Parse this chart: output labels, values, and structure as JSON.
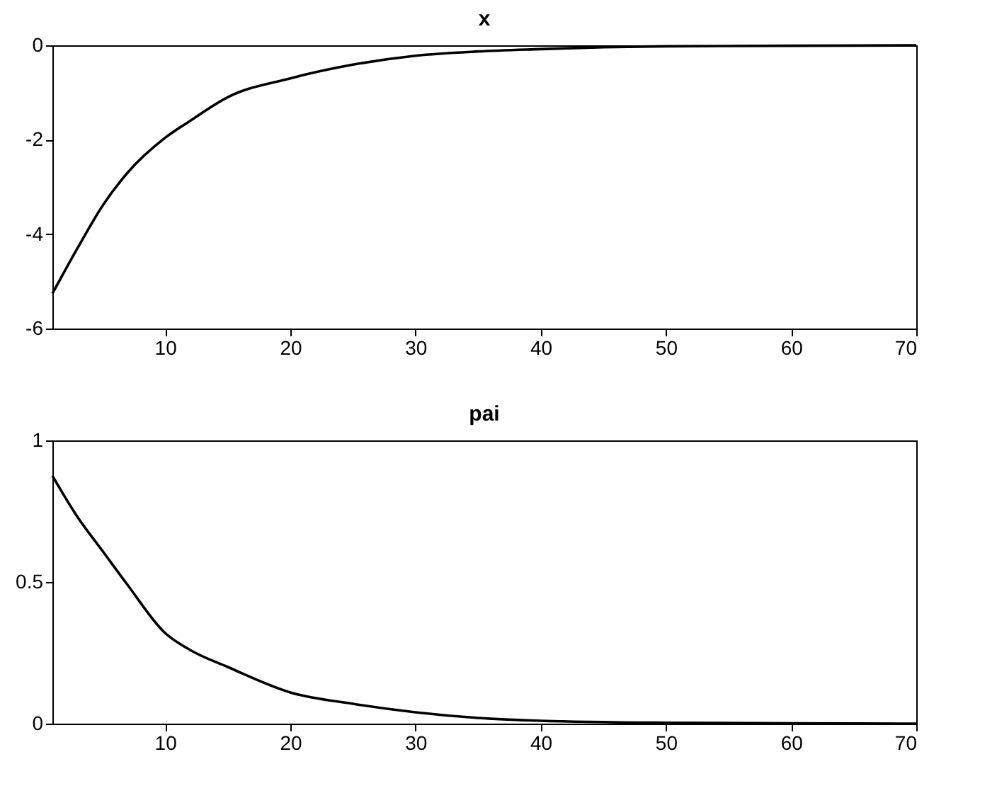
{
  "chart_data": [
    {
      "type": "line",
      "title": "x",
      "x": [
        1,
        3,
        5,
        7,
        10,
        12,
        15,
        20,
        25,
        30,
        35,
        40,
        45,
        50,
        60,
        70
      ],
      "series": [
        {
          "color": "#000000",
          "values": [
            -5.26,
            -4.3,
            -3.4,
            -2.7,
            -1.96,
            -1.6,
            -1.1,
            -0.7,
            -0.41,
            -0.22,
            -0.13,
            -0.08,
            -0.04,
            -0.02,
            -0.01,
            0
          ]
        }
      ],
      "xlim": [
        1,
        70
      ],
      "xticks": [
        10,
        20,
        30,
        40,
        50,
        60,
        70
      ],
      "ylim": [
        -6,
        0
      ],
      "yticks": [
        -6,
        -4,
        -2,
        0
      ],
      "grid": false
    },
    {
      "type": "line",
      "title": "pai",
      "x": [
        1,
        3,
        5,
        7,
        10,
        12,
        15,
        20,
        25,
        30,
        35,
        40,
        50,
        60,
        70
      ],
      "series": [
        {
          "color": "#000000",
          "values": [
            0.875,
            0.73,
            0.61,
            0.49,
            0.32,
            0.26,
            0.2,
            0.11,
            0.07,
            0.04,
            0.02,
            0.01,
            0.003,
            0.001,
            0
          ]
        }
      ],
      "xlim": [
        1,
        70
      ],
      "xticks": [
        10,
        20,
        30,
        40,
        50,
        60,
        70
      ],
      "ylim": [
        0,
        1
      ],
      "yticks": [
        0,
        0.5,
        1
      ],
      "grid": false
    }
  ]
}
